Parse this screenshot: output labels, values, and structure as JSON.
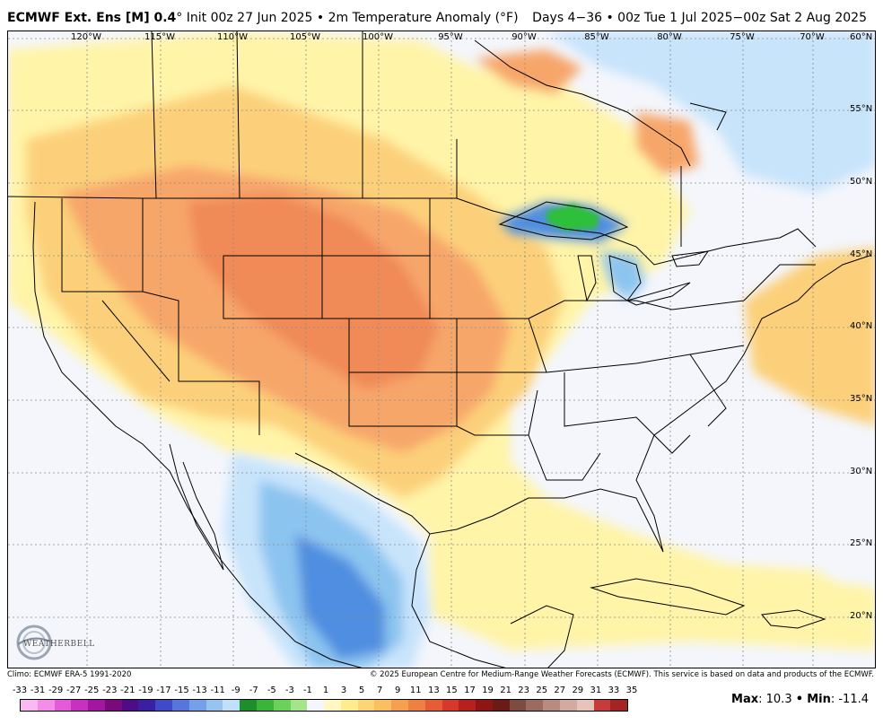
{
  "header": {
    "model": "ECMWF Ext. Ens [M] 0.4",
    "degree": "°",
    "init": "Init 00z 27 Jun 2025",
    "bullet": "•",
    "field": "2m Temperature Anomaly (°F)",
    "right": "Days 4−36 • 00z Tue 1 Jul 2025−00z Sat 2 Aug 2025"
  },
  "map": {
    "lon_labels": [
      "120°W",
      "115°W",
      "110°W",
      "105°W",
      "100°W",
      "95°W",
      "90°W",
      "85°W",
      "80°W",
      "75°W",
      "70°W"
    ],
    "lat_labels": [
      "60°N",
      "55°N",
      "50°N",
      "45°N",
      "40°N",
      "35°N",
      "30°N",
      "25°N",
      "20°N"
    ],
    "colors": {
      "ocean_background": "#f4f6fc",
      "warm_light": "#fff4a8",
      "warm_mid": "#fcd07a",
      "warm_strong": "#f7a66a",
      "warm_peak": "#f08a56",
      "cool_light": "#c8e4fb",
      "cool_mid": "#8cc4f0",
      "cool_strong": "#4f8ee0",
      "cool_peak": "#1f4ec0",
      "green_peak": "#2fbf3a"
    }
  },
  "logo": {
    "text": "WEATHERBELL"
  },
  "footer": {
    "climo": "Climo: ECMWF ERA-5 1991-2020",
    "copyright": "© 2025 European Centre for Medium-Range Weather Forecasts (ECMWF). This service is based on data and products of the ECMWF."
  },
  "colorbar": {
    "labels": [
      "-33",
      "-31",
      "-29",
      "-27",
      "-25",
      "-23",
      "-21",
      "-19",
      "-17",
      "-15",
      "-13",
      "-11",
      "-9",
      "-7",
      "-5",
      "-3",
      "-1",
      "1",
      "3",
      "5",
      "7",
      "9",
      "11",
      "13",
      "15",
      "17",
      "19",
      "21",
      "23",
      "25",
      "27",
      "29",
      "31",
      "33",
      "35"
    ],
    "colors": [
      "#f9b9f2",
      "#f28ee8",
      "#e35bd9",
      "#c92fc0",
      "#a3169f",
      "#7a0a7c",
      "#4f0c87",
      "#3a1fa3",
      "#3f49c9",
      "#5676dd",
      "#74a0e8",
      "#97c3f1",
      "#bfe0f8",
      "#1c8f2a",
      "#37b63a",
      "#6ad15a",
      "#a5e58a",
      "#f4f6fc",
      "#fff8c2",
      "#ffec8f",
      "#fdd573",
      "#fbbf5f",
      "#f6a04f",
      "#f07f42",
      "#e65c36",
      "#d6392c",
      "#b8201f",
      "#8e1514",
      "#6b1a18",
      "#7d4b40",
      "#9a6b60",
      "#b78b80",
      "#d2aaa0",
      "#e6c4bb",
      "#c73b3b",
      "#a42424"
    ]
  },
  "stats": {
    "max_label": "Max",
    "max_value": "10.3",
    "min_label": "Min",
    "min_value": "-11.4",
    "sep": "•"
  }
}
